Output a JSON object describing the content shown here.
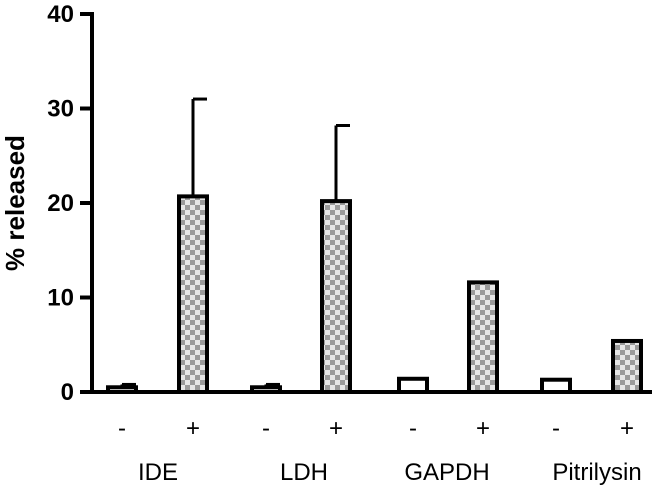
{
  "chart_data": {
    "type": "bar",
    "ylabel": "% released",
    "xlabel": "",
    "ylim": [
      0,
      40
    ],
    "yticks": [
      0,
      10,
      20,
      30,
      40
    ],
    "grid": false,
    "groups": [
      "IDE",
      "LDH",
      "GAPDH",
      "Pitrilysin"
    ],
    "conditions": [
      "-",
      "+"
    ],
    "bars": [
      {
        "group": "IDE",
        "condition": "-",
        "value": 0.5,
        "error": 0.3,
        "fill": "open"
      },
      {
        "group": "IDE",
        "condition": "+",
        "value": 20.7,
        "error": 10.3,
        "fill": "checkered"
      },
      {
        "group": "LDH",
        "condition": "-",
        "value": 0.5,
        "error": 0.3,
        "fill": "open"
      },
      {
        "group": "LDH",
        "condition": "+",
        "value": 20.2,
        "error": 8.0,
        "fill": "checkered"
      },
      {
        "group": "GAPDH",
        "condition": "-",
        "value": 1.4,
        "error": 0,
        "fill": "open"
      },
      {
        "group": "GAPDH",
        "condition": "+",
        "value": 11.6,
        "error": 0,
        "fill": "checkered"
      },
      {
        "group": "Pitrilysin",
        "condition": "-",
        "value": 1.3,
        "error": 0,
        "fill": "open"
      },
      {
        "group": "Pitrilysin",
        "condition": "+",
        "value": 5.4,
        "error": 0,
        "fill": "checkered"
      }
    ],
    "colors": {
      "open_fill": "#ffffff",
      "check_light": "#e6e6e6",
      "check_dark": "#9a9a9a",
      "stroke": "#000000"
    }
  }
}
